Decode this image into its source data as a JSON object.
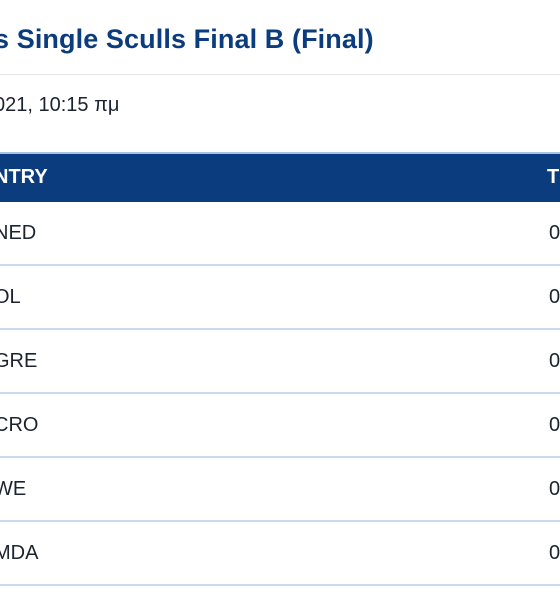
{
  "header": {
    "title": "s Single Sculls Final B (Final)",
    "datetime": "021, 10:15 πμ"
  },
  "table": {
    "columns": {
      "country": "NTRY",
      "time": "T"
    },
    "rows": [
      {
        "country": "NED",
        "time": "0"
      },
      {
        "country": "OL",
        "time": "0"
      },
      {
        "country": "GRE",
        "time": "0"
      },
      {
        "country": "CRO",
        "time": "0"
      },
      {
        "country": "WE",
        "time": "0"
      },
      {
        "country": "MDA",
        "time": "0"
      }
    ]
  }
}
